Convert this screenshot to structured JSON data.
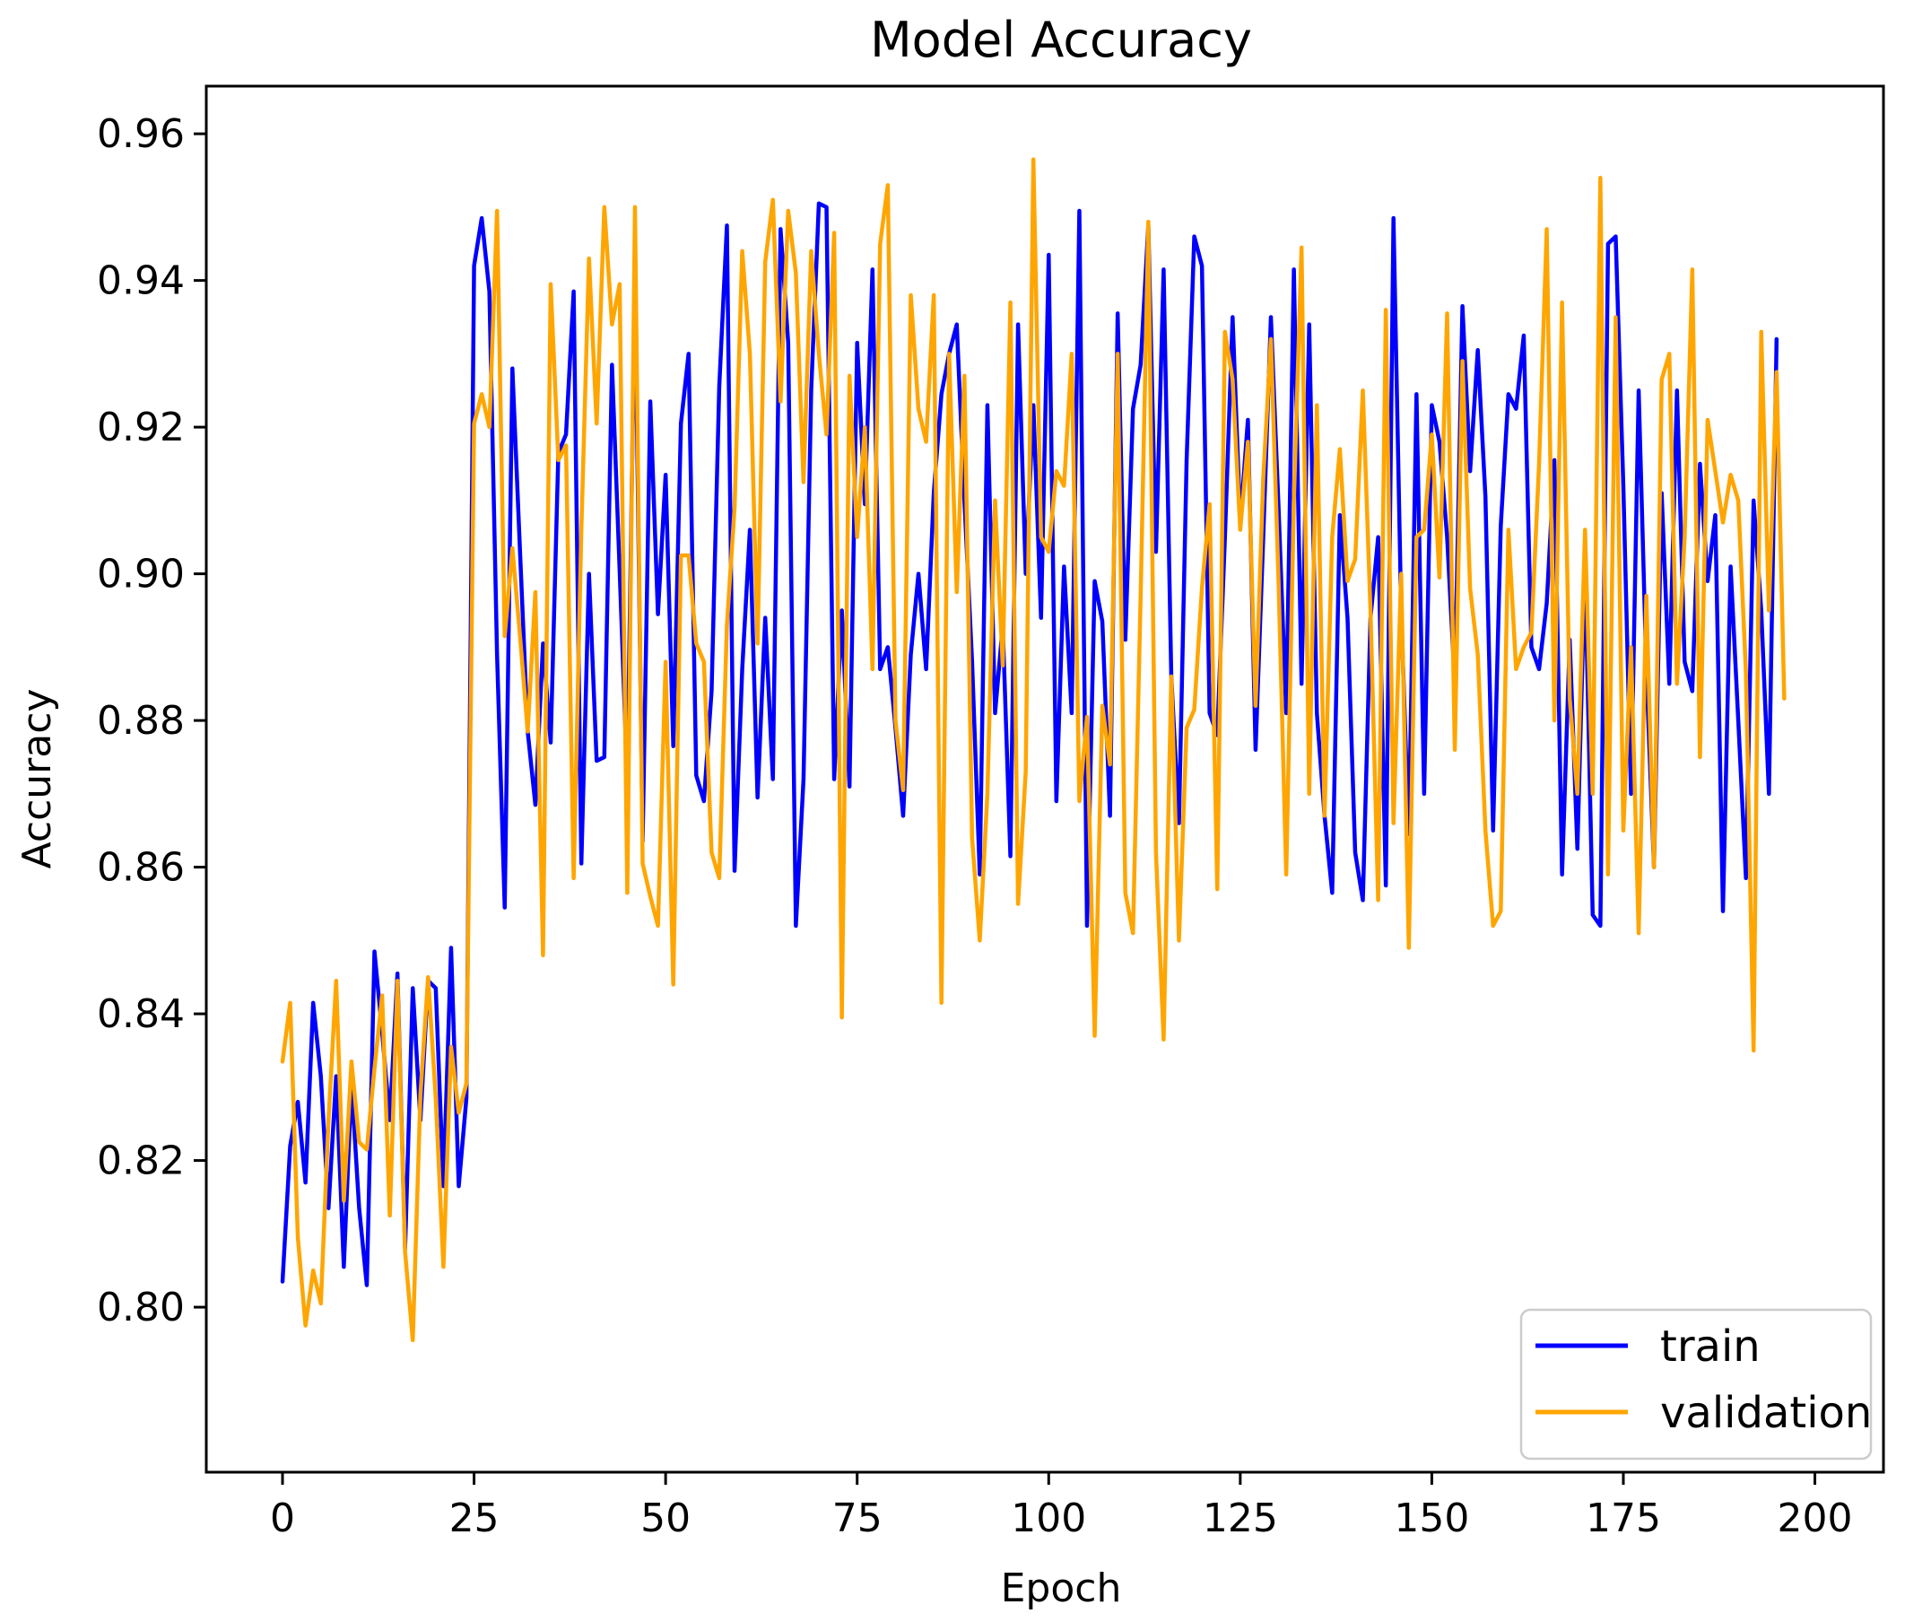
{
  "chart_data": {
    "type": "line",
    "title": "Model Accuracy",
    "xlabel": "Epoch",
    "ylabel": "Accuracy",
    "xlim": [
      -9.95,
      208.95
    ],
    "ylim": [
      0.7775,
      0.9665
    ],
    "xticks": [
      0,
      25,
      50,
      75,
      100,
      125,
      150,
      175,
      200
    ],
    "xtick_labels": [
      "0",
      "25",
      "50",
      "75",
      "100",
      "125",
      "150",
      "175",
      "200"
    ],
    "yticks": [
      0.8,
      0.82,
      0.84,
      0.86,
      0.88,
      0.9,
      0.92,
      0.94,
      0.96
    ],
    "ytick_labels": [
      "0.80",
      "0.82",
      "0.84",
      "0.86",
      "0.88",
      "0.90",
      "0.92",
      "0.94",
      "0.96"
    ],
    "grid": false,
    "legend_position": "bottom-right",
    "series": [
      {
        "name": "train",
        "color": "#0000ff",
        "values": [
          0.8035,
          0.822,
          0.828,
          0.817,
          0.8415,
          0.8315,
          0.8135,
          0.8315,
          0.8055,
          0.8305,
          0.8135,
          0.803,
          0.8485,
          0.8375,
          0.8255,
          0.8455,
          0.808,
          0.8435,
          0.8255,
          0.8445,
          0.8435,
          0.8165,
          0.849,
          0.8165,
          0.8285,
          0.942,
          0.9485,
          0.9385,
          0.889,
          0.8545,
          0.928,
          0.903,
          0.8785,
          0.8685,
          0.8905,
          0.877,
          0.9165,
          0.919,
          0.9385,
          0.8605,
          0.9,
          0.8745,
          0.875,
          0.9285,
          0.9005,
          0.8715,
          0.9405,
          0.8635,
          0.9235,
          0.8945,
          0.9135,
          0.8765,
          0.9205,
          0.93,
          0.8725,
          0.869,
          0.884,
          0.9255,
          0.9475,
          0.8595,
          0.887,
          0.906,
          0.8695,
          0.894,
          0.872,
          0.947,
          0.9315,
          0.852,
          0.872,
          0.925,
          0.9505,
          0.95,
          0.872,
          0.895,
          0.871,
          0.9315,
          0.9095,
          0.9415,
          0.887,
          0.89,
          0.879,
          0.867,
          0.889,
          0.9,
          0.887,
          0.911,
          0.9245,
          0.93,
          0.934,
          0.91,
          0.888,
          0.859,
          0.923,
          0.881,
          0.893,
          0.8615,
          0.934,
          0.9,
          0.923,
          0.894,
          0.9435,
          0.869,
          0.901,
          0.881,
          0.9495,
          0.852,
          0.899,
          0.8935,
          0.867,
          0.9355,
          0.891,
          0.9225,
          0.9285,
          0.9475,
          0.903,
          0.9415,
          0.886,
          0.866,
          0.9155,
          0.946,
          0.942,
          0.881,
          0.878,
          0.905,
          0.935,
          0.907,
          0.921,
          0.876,
          0.905,
          0.935,
          0.909,
          0.881,
          0.9415,
          0.885,
          0.934,
          0.881,
          0.867,
          0.8565,
          0.908,
          0.894,
          0.862,
          0.8555,
          0.894,
          0.905,
          0.8575,
          0.9485,
          0.895,
          0.8645,
          0.9245,
          0.87,
          0.923,
          0.918,
          0.905,
          0.885,
          0.9365,
          0.914,
          0.9305,
          0.9105,
          0.865,
          0.9065,
          0.9245,
          0.9225,
          0.9325,
          0.89,
          0.887,
          0.896,
          0.9155,
          0.859,
          0.891,
          0.8625,
          0.901,
          0.8535,
          0.852,
          0.945,
          0.946,
          0.912,
          0.87,
          0.925,
          0.887,
          0.86,
          0.911,
          0.885,
          0.925,
          0.888,
          0.884,
          0.915,
          0.899,
          0.908,
          0.854,
          0.901,
          0.88,
          0.8585,
          0.91,
          0.895,
          0.87,
          0.932
        ]
      },
      {
        "name": "validation",
        "color": "#ffa500",
        "values": [
          0.8335,
          0.8415,
          0.8095,
          0.7975,
          0.805,
          0.8005,
          0.8255,
          0.8445,
          0.8145,
          0.8335,
          0.8225,
          0.8215,
          0.8325,
          0.8425,
          0.8125,
          0.8445,
          0.8075,
          0.7955,
          0.829,
          0.845,
          0.8285,
          0.8055,
          0.8355,
          0.8265,
          0.8305,
          0.9205,
          0.9245,
          0.92,
          0.9495,
          0.8915,
          0.9035,
          0.8915,
          0.8785,
          0.8975,
          0.848,
          0.9395,
          0.9155,
          0.9175,
          0.8585,
          0.906,
          0.943,
          0.9205,
          0.95,
          0.934,
          0.9395,
          0.8565,
          0.95,
          0.8605,
          0.856,
          0.852,
          0.888,
          0.844,
          0.9025,
          0.9025,
          0.8905,
          0.888,
          0.862,
          0.8585,
          0.893,
          0.909,
          0.944,
          0.93,
          0.8905,
          0.9425,
          0.951,
          0.9235,
          0.9495,
          0.941,
          0.9125,
          0.944,
          0.93,
          0.919,
          0.9465,
          0.8395,
          0.927,
          0.905,
          0.92,
          0.887,
          0.945,
          0.953,
          0.88,
          0.8705,
          0.938,
          0.9225,
          0.918,
          0.938,
          0.8415,
          0.93,
          0.8975,
          0.927,
          0.864,
          0.85,
          0.87,
          0.91,
          0.8875,
          0.937,
          0.855,
          0.873,
          0.9565,
          0.905,
          0.903,
          0.914,
          0.912,
          0.93,
          0.869,
          0.8805,
          0.837,
          0.882,
          0.874,
          0.93,
          0.8565,
          0.851,
          0.897,
          0.948,
          0.862,
          0.8365,
          0.886,
          0.85,
          0.879,
          0.8815,
          0.898,
          0.9095,
          0.857,
          0.933,
          0.9265,
          0.906,
          0.918,
          0.882,
          0.913,
          0.932,
          0.899,
          0.859,
          0.91,
          0.9445,
          0.87,
          0.923,
          0.867,
          0.905,
          0.917,
          0.899,
          0.902,
          0.925,
          0.895,
          0.8555,
          0.936,
          0.866,
          0.9,
          0.849,
          0.905,
          0.906,
          0.919,
          0.8995,
          0.9355,
          0.876,
          0.929,
          0.898,
          0.889,
          0.865,
          0.852,
          0.854,
          0.906,
          0.887,
          0.89,
          0.892,
          0.915,
          0.947,
          0.88,
          0.937,
          0.883,
          0.87,
          0.906,
          0.87,
          0.954,
          0.859,
          0.935,
          0.865,
          0.89,
          0.851,
          0.897,
          0.86,
          0.9265,
          0.93,
          0.885,
          0.905,
          0.9415,
          0.875,
          0.921,
          0.914,
          0.907,
          0.9135,
          0.91,
          0.8865,
          0.835,
          0.933,
          0.895,
          0.9275,
          0.883
        ]
      }
    ]
  }
}
